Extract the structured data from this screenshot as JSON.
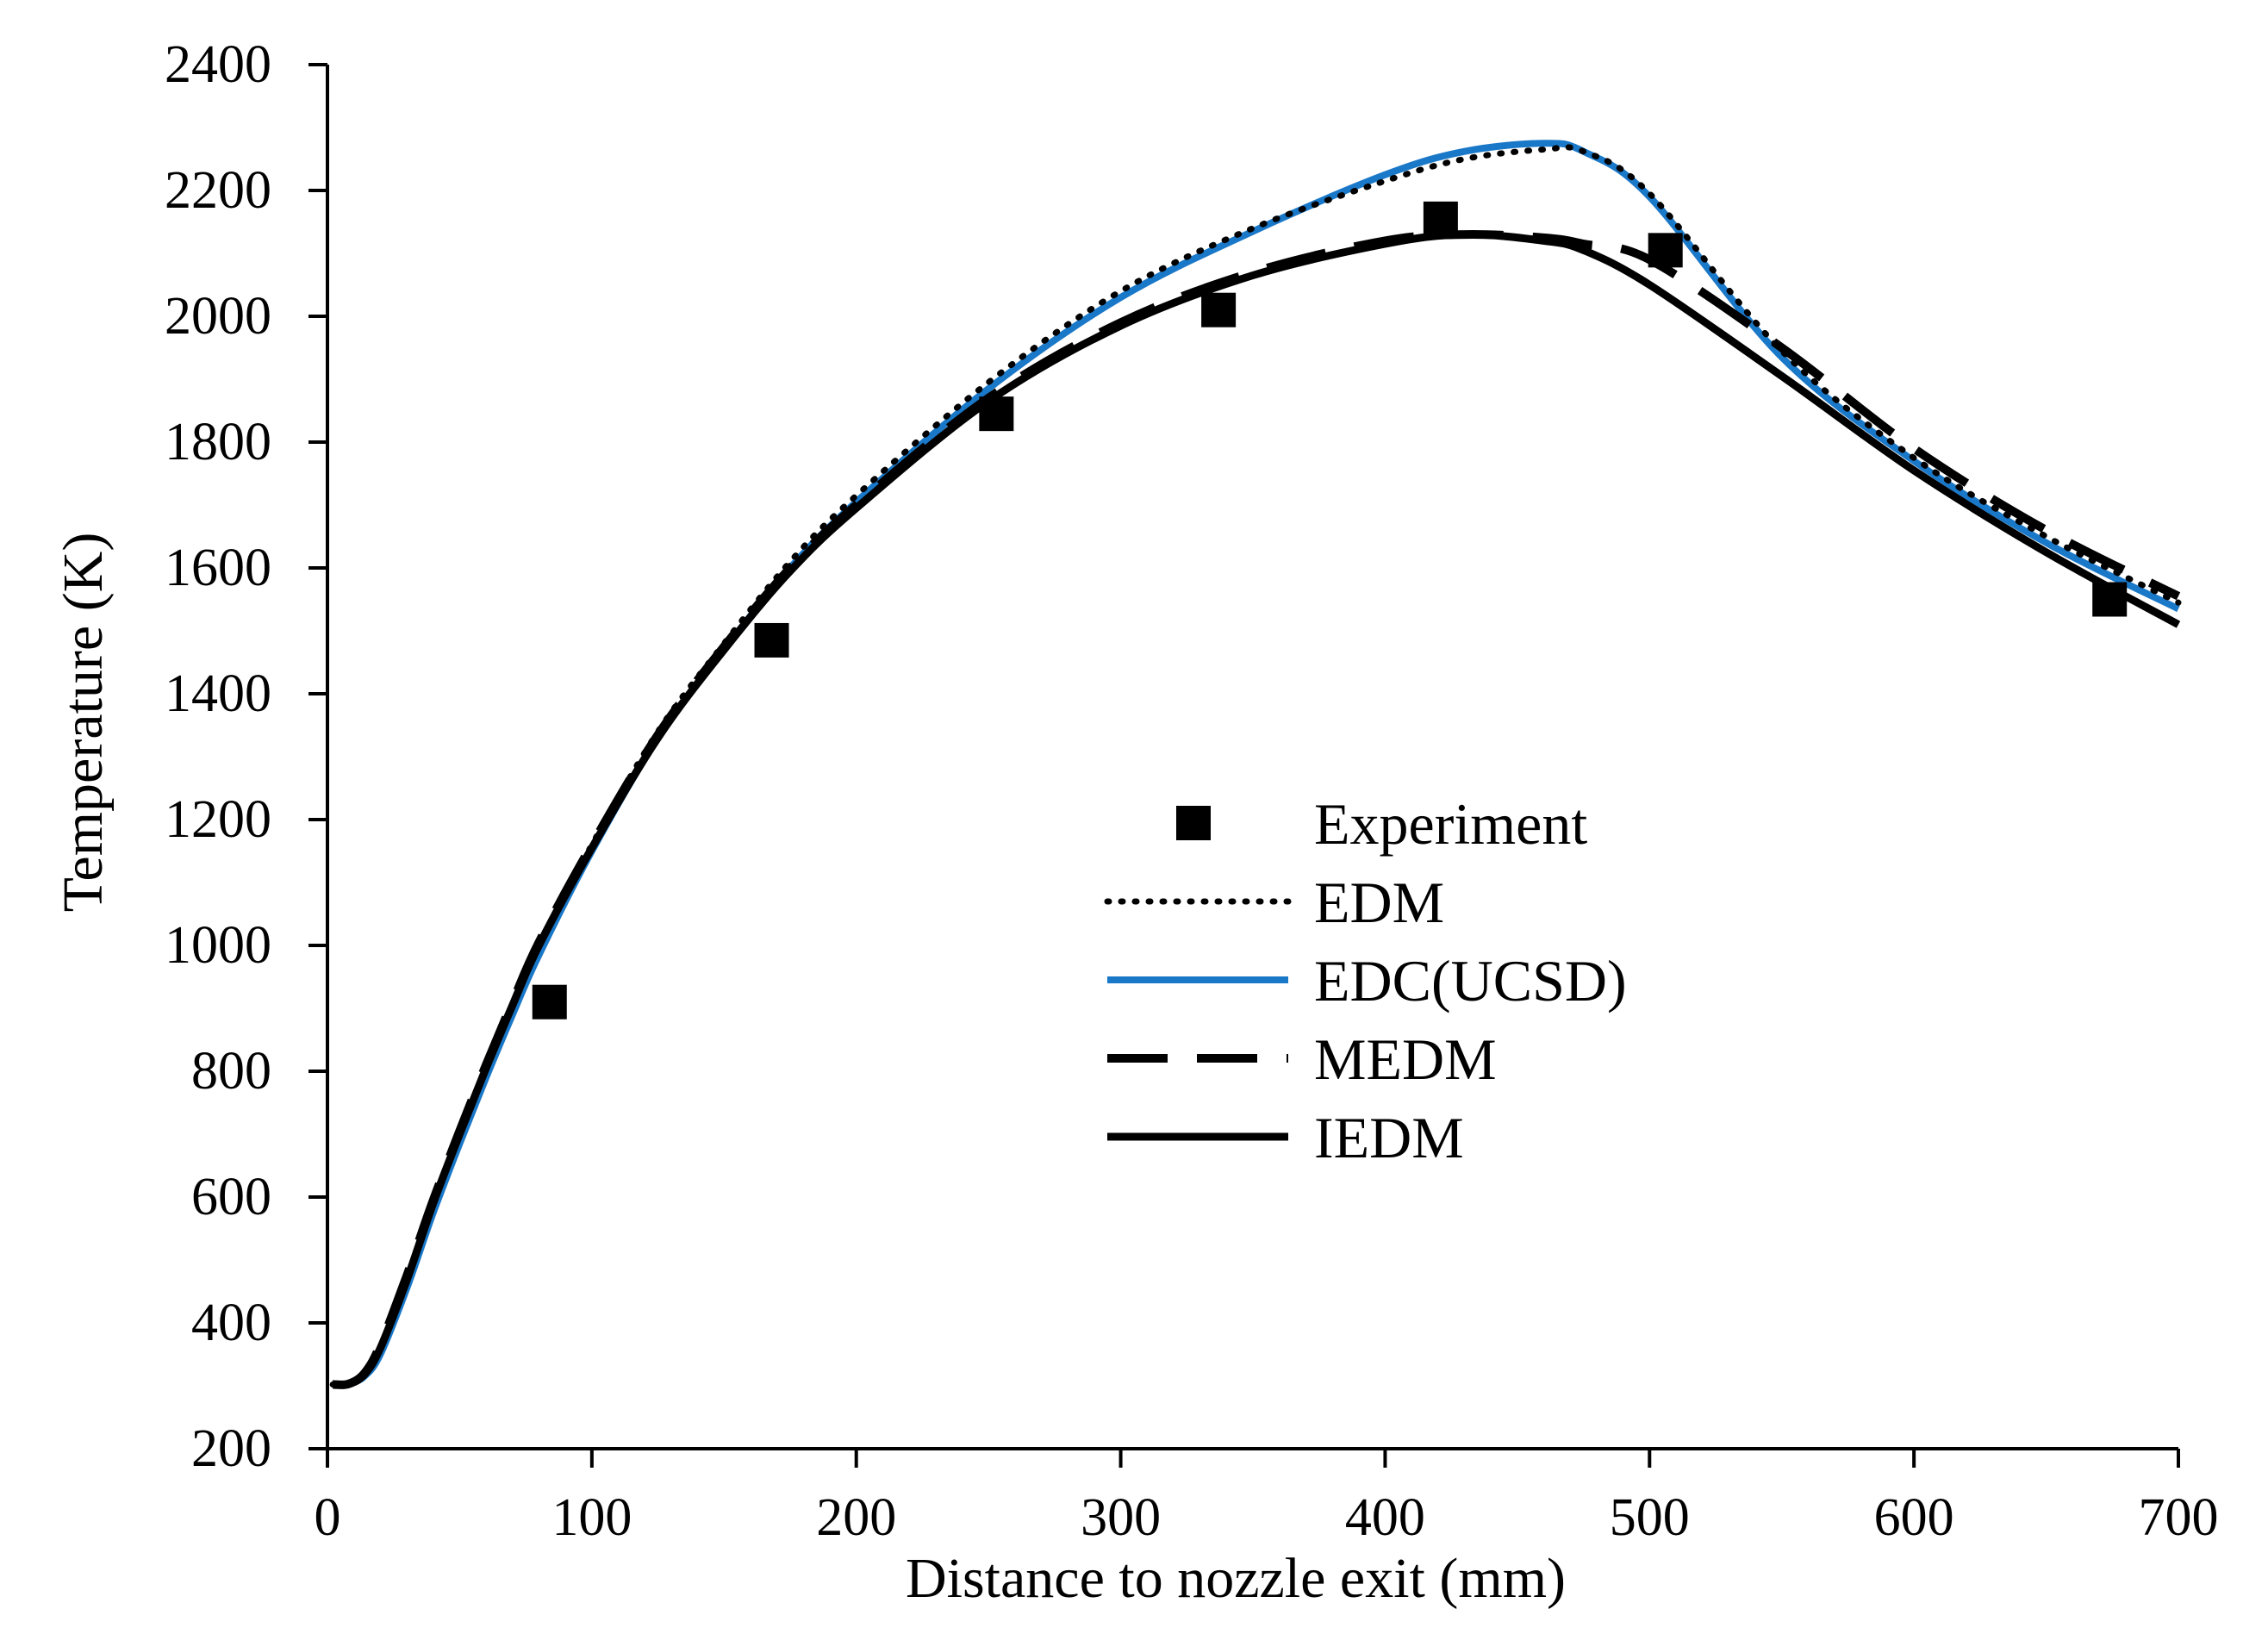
{
  "chart_data": {
    "type": "line",
    "title": "",
    "xlabel": "Distance to nozzle exit (mm)",
    "ylabel": "Temperature  (K)",
    "xlim": [
      0,
      700
    ],
    "ylim": [
      200,
      2400
    ],
    "xticks": [
      0,
      100,
      200,
      300,
      400,
      500,
      600,
      700
    ],
    "yticks": [
      200,
      400,
      600,
      800,
      1000,
      1200,
      1400,
      1600,
      1800,
      2000,
      2200,
      2400
    ],
    "grid": false,
    "legend_position": "center",
    "series": [
      {
        "name": "Experiment",
        "kind": "scatter",
        "marker": "square",
        "color": "#000000",
        "x": [
          84,
          168,
          253,
          337,
          421,
          506,
          674
        ],
        "y": [
          910,
          1485,
          1845,
          2010,
          2155,
          2105,
          1550
        ]
      },
      {
        "name": "EDM",
        "kind": "line",
        "style": "dotted",
        "color": "#000000",
        "x": [
          2,
          8,
          14,
          20,
          30,
          40,
          50,
          60,
          70,
          80,
          100,
          125,
          150,
          175,
          200,
          250,
          300,
          350,
          400,
          430,
          460,
          475,
          500,
          550,
          600,
          650,
          700
        ],
        "y": [
          302,
          303,
          318,
          360,
          470,
          590,
          700,
          805,
          905,
          1000,
          1160,
          1340,
          1480,
          1610,
          1715,
          1895,
          2040,
          2140,
          2215,
          2250,
          2265,
          2262,
          2195,
          1945,
          1775,
          1650,
          1545
        ]
      },
      {
        "name": "EDC(UCSD)",
        "kind": "line",
        "style": "solid",
        "color": "#1a78c8",
        "x": [
          2,
          8,
          14,
          20,
          30,
          40,
          50,
          60,
          70,
          80,
          100,
          125,
          150,
          175,
          200,
          250,
          300,
          350,
          400,
          430,
          460,
          475,
          500,
          550,
          600,
          650,
          700
        ],
        "y": [
          302,
          303,
          315,
          350,
          455,
          575,
          685,
          790,
          890,
          985,
          1150,
          1330,
          1470,
          1600,
          1705,
          1885,
          2030,
          2135,
          2225,
          2262,
          2275,
          2262,
          2190,
          1935,
          1770,
          1640,
          1535
        ]
      },
      {
        "name": "MEDM",
        "kind": "line",
        "style": "dashed",
        "color": "#000000",
        "x": [
          2,
          8,
          14,
          20,
          30,
          40,
          50,
          60,
          70,
          80,
          100,
          125,
          150,
          175,
          200,
          250,
          300,
          350,
          400,
          430,
          460,
          475,
          500,
          550,
          600,
          650,
          700
        ],
        "y": [
          302,
          303,
          320,
          365,
          475,
          595,
          705,
          810,
          910,
          1005,
          1160,
          1335,
          1475,
          1600,
          1700,
          1870,
          1990,
          2070,
          2120,
          2130,
          2125,
          2115,
          2090,
          1950,
          1790,
          1660,
          1555
        ]
      },
      {
        "name": "IEDM",
        "kind": "line",
        "style": "solid",
        "color": "#000000",
        "x": [
          2,
          8,
          14,
          20,
          30,
          40,
          50,
          60,
          70,
          80,
          100,
          125,
          150,
          175,
          200,
          250,
          300,
          350,
          400,
          430,
          460,
          475,
          500,
          550,
          600,
          650,
          700
        ],
        "y": [
          302,
          303,
          318,
          360,
          468,
          590,
          700,
          805,
          905,
          1000,
          1155,
          1330,
          1470,
          1595,
          1695,
          1865,
          1985,
          2065,
          2115,
          2130,
          2120,
          2105,
          2050,
          1905,
          1755,
          1625,
          1510
        ]
      }
    ]
  }
}
